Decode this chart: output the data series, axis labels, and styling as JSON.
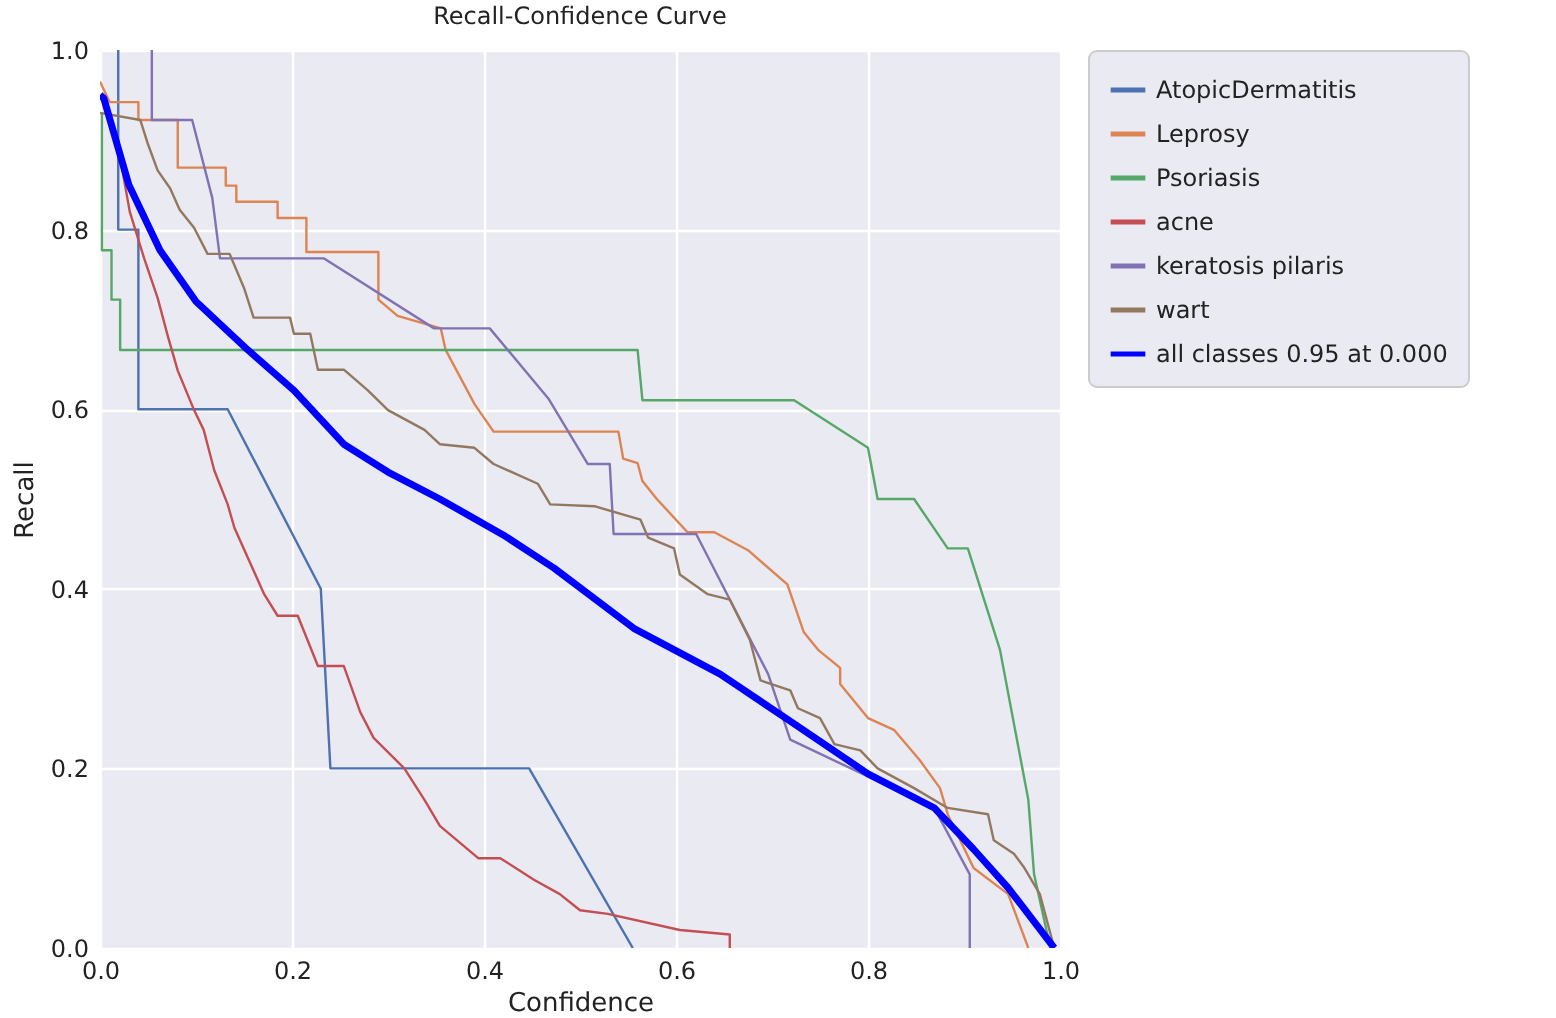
{
  "chart_data": {
    "type": "line",
    "title": "Recall-Confidence Curve",
    "xlabel": "Confidence",
    "ylabel": "Recall",
    "xlim": [
      0,
      1
    ],
    "ylim": [
      0,
      1
    ],
    "xticks": [
      {
        "value": 0,
        "label": "0.0"
      },
      {
        "value": 0.2,
        "label": "0.2"
      },
      {
        "value": 0.4,
        "label": "0.4"
      },
      {
        "value": 0.6,
        "label": "0.6"
      },
      {
        "value": 0.8,
        "label": "0.8"
      },
      {
        "value": 1,
        "label": "1.0"
      }
    ],
    "yticks": [
      {
        "value": 0,
        "label": "0.0"
      },
      {
        "value": 0.2,
        "label": "0.2"
      },
      {
        "value": 0.4,
        "label": "0.4"
      },
      {
        "value": 0.6,
        "label": "0.6"
      },
      {
        "value": 0.8,
        "label": "0.8"
      },
      {
        "value": 1,
        "label": "1.0"
      }
    ],
    "grid": true,
    "legend": "top right",
    "marker": "none",
    "line_style": "solid",
    "series": [
      {
        "name": "AtopicDermatitis",
        "color": "#4c72b0",
        "x": [
          0.019,
          0.019,
          0.04,
          0.04,
          0.133,
          0.23,
          0.24,
          0.447,
          0.555
        ],
        "values": [
          1.0,
          0.8,
          0.8,
          0.6,
          0.6,
          0.4,
          0.2,
          0.2,
          0.0
        ]
      },
      {
        "name": "Leprosy",
        "color": "#dd8452",
        "x": [
          0.0,
          0.01,
          0.04,
          0.04,
          0.081,
          0.081,
          0.131,
          0.131,
          0.142,
          0.142,
          0.185,
          0.185,
          0.215,
          0.215,
          0.29,
          0.29,
          0.31,
          0.355,
          0.36,
          0.39,
          0.41,
          0.54,
          0.545,
          0.56,
          0.565,
          0.58,
          0.612,
          0.64,
          0.675,
          0.716,
          0.733,
          0.748,
          0.771,
          0.771,
          0.8,
          0.827,
          0.854,
          0.875,
          0.883,
          0.91,
          0.946,
          0.967
        ],
        "values": [
          0.965,
          0.942,
          0.942,
          0.922,
          0.922,
          0.869,
          0.869,
          0.849,
          0.849,
          0.831,
          0.831,
          0.813,
          0.813,
          0.775,
          0.775,
          0.722,
          0.704,
          0.69,
          0.666,
          0.606,
          0.575,
          0.575,
          0.545,
          0.54,
          0.52,
          0.5,
          0.463,
          0.463,
          0.443,
          0.405,
          0.352,
          0.332,
          0.312,
          0.294,
          0.256,
          0.243,
          0.209,
          0.178,
          0.149,
          0.089,
          0.06,
          0.0
        ]
      },
      {
        "name": "Psoriasis",
        "color": "#55a868",
        "x": [
          0.002,
          0.002,
          0.012,
          0.012,
          0.021,
          0.021,
          0.56,
          0.565,
          0.723,
          0.8,
          0.81,
          0.848,
          0.883,
          0.904,
          0.9375,
          0.967,
          0.973,
          0.99
        ],
        "values": [
          0.93,
          0.777,
          0.777,
          0.722,
          0.722,
          0.666,
          0.666,
          0.61,
          0.61,
          0.557,
          0.5,
          0.5,
          0.445,
          0.445,
          0.332,
          0.165,
          0.082,
          0.0
        ]
      },
      {
        "name": "acne",
        "color": "#c44e52",
        "x": [
          0.005,
          0.021,
          0.031,
          0.046,
          0.06,
          0.071,
          0.081,
          0.098,
          0.108,
          0.119,
          0.133,
          0.14,
          0.171,
          0.185,
          0.206,
          0.227,
          0.254,
          0.271,
          0.285,
          0.317,
          0.338,
          0.354,
          0.394,
          0.417,
          0.452,
          0.479,
          0.5,
          0.529,
          0.604,
          0.656,
          0.656
        ],
        "values": [
          0.95,
          0.88,
          0.82,
          0.768,
          0.724,
          0.68,
          0.643,
          0.599,
          0.577,
          0.532,
          0.494,
          0.468,
          0.394,
          0.37,
          0.37,
          0.314,
          0.314,
          0.263,
          0.234,
          0.2,
          0.165,
          0.136,
          0.1,
          0.1,
          0.076,
          0.06,
          0.042,
          0.038,
          0.02,
          0.015,
          0.0
        ]
      },
      {
        "name": "keratosis pilaris",
        "color": "#8172b3",
        "x": [
          0.054,
          0.054,
          0.096,
          0.117,
          0.125,
          0.233,
          0.348,
          0.406,
          0.467,
          0.508,
          0.531,
          0.535,
          0.621,
          0.696,
          0.719,
          0.869,
          0.906,
          0.906
        ],
        "values": [
          1.0,
          0.922,
          0.922,
          0.835,
          0.768,
          0.768,
          0.69,
          0.69,
          0.612,
          0.539,
          0.539,
          0.461,
          0.461,
          0.305,
          0.232,
          0.156,
          0.082,
          0.0
        ]
      },
      {
        "name": "wart",
        "color": "#937860",
        "x": [
          0.0,
          0.042,
          0.05,
          0.06,
          0.073,
          0.083,
          0.098,
          0.112,
          0.135,
          0.15,
          0.16,
          0.198,
          0.202,
          0.219,
          0.227,
          0.254,
          0.279,
          0.3,
          0.338,
          0.354,
          0.39,
          0.41,
          0.456,
          0.469,
          0.515,
          0.563,
          0.571,
          0.598,
          0.604,
          0.633,
          0.656,
          0.677,
          0.688,
          0.719,
          0.727,
          0.75,
          0.765,
          0.792,
          0.81,
          0.848,
          0.883,
          0.925,
          0.931,
          0.952,
          0.963,
          0.979,
          0.994
        ],
        "values": [
          0.93,
          0.922,
          0.895,
          0.866,
          0.846,
          0.822,
          0.802,
          0.773,
          0.773,
          0.735,
          0.702,
          0.702,
          0.684,
          0.684,
          0.644,
          0.644,
          0.621,
          0.599,
          0.577,
          0.561,
          0.557,
          0.539,
          0.517,
          0.494,
          0.492,
          0.477,
          0.457,
          0.445,
          0.416,
          0.394,
          0.388,
          0.343,
          0.298,
          0.287,
          0.267,
          0.256,
          0.227,
          0.22,
          0.2,
          0.178,
          0.156,
          0.149,
          0.12,
          0.105,
          0.089,
          0.06,
          0.0
        ]
      },
      {
        "name": "all classes 0.95 at 0.000",
        "color": "#0000ff",
        "x": [
          0.0,
          0.004,
          0.03,
          0.0625,
          0.1,
          0.154,
          0.202,
          0.254,
          0.3,
          0.354,
          0.42,
          0.473,
          0.556,
          0.646,
          0.717,
          0.8,
          0.869,
          0.91,
          0.946,
          0.994
        ],
        "values": [
          0.95,
          0.946,
          0.85,
          0.777,
          0.72,
          0.666,
          0.621,
          0.561,
          0.53,
          0.5,
          0.46,
          0.423,
          0.356,
          0.305,
          0.254,
          0.194,
          0.156,
          0.11,
          0.067,
          0.0
        ]
      }
    ]
  }
}
